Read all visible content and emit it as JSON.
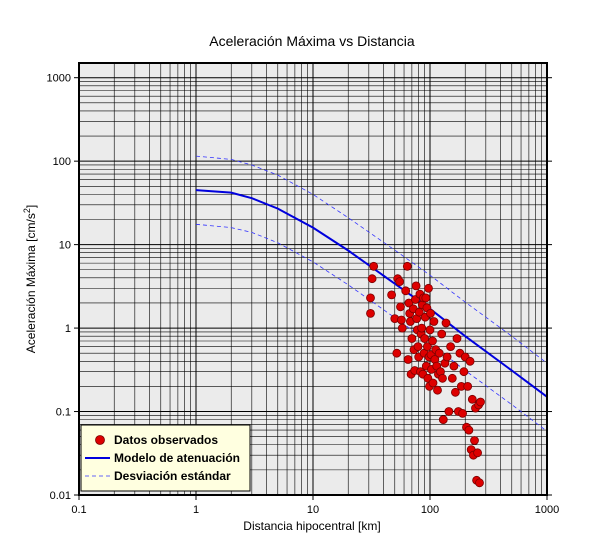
{
  "chart_data": {
    "type": "scatter",
    "title": "Aceleración Máxima vs Distancia",
    "xlabel": "Distancia hipocentral [km]",
    "ylabel_main": "Aceleración Máxima [cm/s",
    "ylabel_sup": "2",
    "ylabel_end": "]",
    "xscale": "log",
    "yscale": "log",
    "xlim": [
      0.1,
      1000
    ],
    "ylim": [
      0.01,
      1500
    ],
    "xticks": [
      {
        "value": 0.1,
        "label": "0.1"
      },
      {
        "value": 1,
        "label": "1"
      },
      {
        "value": 10,
        "label": "10"
      },
      {
        "value": 100,
        "label": "100"
      },
      {
        "value": 1000,
        "label": "1000"
      }
    ],
    "yticks": [
      {
        "value": 0.01,
        "label": "0.01"
      },
      {
        "value": 0.1,
        "label": "0.1"
      },
      {
        "value": 1,
        "label": "1"
      },
      {
        "value": 10,
        "label": "10"
      },
      {
        "value": 100,
        "label": "100"
      },
      {
        "value": 1000,
        "label": "1000"
      }
    ],
    "grid": true,
    "legend_position": "bottom-left",
    "colors": {
      "background": "#ebebeb",
      "grid": "#000000",
      "points": "#dd0000",
      "point_edge": "#7a0000",
      "model": "#0000dd",
      "stddev": "#3333ff",
      "legend_bg": "#ffffe0"
    },
    "series": [
      {
        "name": "Datos observados",
        "kind": "points",
        "points": [
          [
            33,
            5.5
          ],
          [
            32,
            3.9
          ],
          [
            31,
            2.3
          ],
          [
            31,
            1.5
          ],
          [
            47,
            2.5
          ],
          [
            50,
            1.3
          ],
          [
            52,
            0.5
          ],
          [
            53,
            3.9
          ],
          [
            55,
            3.6
          ],
          [
            56,
            1.8
          ],
          [
            57,
            1.25
          ],
          [
            58,
            1.0
          ],
          [
            62,
            2.8
          ],
          [
            64,
            5.5
          ],
          [
            65,
            0.42
          ],
          [
            66,
            2.0
          ],
          [
            67,
            1.5
          ],
          [
            68,
            1.2
          ],
          [
            69,
            0.28
          ],
          [
            70,
            0.75
          ],
          [
            72,
            1.7
          ],
          [
            73,
            0.55
          ],
          [
            74,
            0.31
          ],
          [
            75,
            2.2
          ],
          [
            76,
            3.2
          ],
          [
            77,
            1.3
          ],
          [
            78,
            0.95
          ],
          [
            79,
            0.6
          ],
          [
            80,
            0.45
          ],
          [
            81,
            1.55
          ],
          [
            82,
            2.55
          ],
          [
            83,
            0.3
          ],
          [
            84,
            0.85
          ],
          [
            85,
            1.0
          ],
          [
            86,
            1.9
          ],
          [
            87,
            0.28
          ],
          [
            88,
            2.3
          ],
          [
            89,
            0.5
          ],
          [
            90,
            0.75
          ],
          [
            91,
            1.35
          ],
          [
            92,
            2.3
          ],
          [
            93,
            0.35
          ],
          [
            94,
            1.75
          ],
          [
            95,
            0.6
          ],
          [
            96,
            0.25
          ],
          [
            97,
            3.0
          ],
          [
            98,
            0.45
          ],
          [
            99,
            0.2
          ],
          [
            100,
            0.95
          ],
          [
            101,
            1.5
          ],
          [
            102,
            0.48
          ],
          [
            103,
            0.32
          ],
          [
            105,
            0.7
          ],
          [
            106,
            0.22
          ],
          [
            108,
            1.2
          ],
          [
            110,
            0.42
          ],
          [
            112,
            0.55
          ],
          [
            114,
            0.35
          ],
          [
            116,
            0.18
          ],
          [
            118,
            0.28
          ],
          [
            120,
            0.5
          ],
          [
            123,
            0.3
          ],
          [
            126,
            0.85
          ],
          [
            128,
            0.25
          ],
          [
            130,
            0.08
          ],
          [
            134,
            0.38
          ],
          [
            137,
            1.15
          ],
          [
            140,
            0.45
          ],
          [
            145,
            0.1
          ],
          [
            150,
            0.6
          ],
          [
            155,
            0.25
          ],
          [
            160,
            0.35
          ],
          [
            165,
            0.17
          ],
          [
            170,
            0.75
          ],
          [
            175,
            0.1
          ],
          [
            180,
            0.5
          ],
          [
            185,
            0.2
          ],
          [
            190,
            0.095
          ],
          [
            195,
            0.3
          ],
          [
            200,
            0.45
          ],
          [
            205,
            0.065
          ],
          [
            210,
            0.2
          ],
          [
            215,
            0.06
          ],
          [
            220,
            0.4
          ],
          [
            225,
            0.035
          ],
          [
            230,
            0.14
          ],
          [
            235,
            0.03
          ],
          [
            240,
            0.045
          ],
          [
            245,
            0.11
          ],
          [
            250,
            0.015
          ],
          [
            255,
            0.032
          ],
          [
            260,
            0.12
          ],
          [
            265,
            0.014
          ],
          [
            270,
            0.13
          ]
        ]
      },
      {
        "name": "Modelo de atenuación",
        "kind": "line",
        "points": [
          [
            1,
            45
          ],
          [
            2,
            42
          ],
          [
            3,
            36
          ],
          [
            5,
            27
          ],
          [
            10,
            16
          ],
          [
            20,
            8.5
          ],
          [
            50,
            3.4
          ],
          [
            100,
            1.7
          ],
          [
            200,
            0.8
          ],
          [
            500,
            0.31
          ],
          [
            1000,
            0.15
          ]
        ]
      },
      {
        "name": "Desviación estándar",
        "kind": "dashed",
        "points": [
          [
            1,
            115
          ],
          [
            2,
            105
          ],
          [
            3,
            90
          ],
          [
            5,
            68
          ],
          [
            10,
            40
          ],
          [
            20,
            21
          ],
          [
            50,
            8.6
          ],
          [
            100,
            4.3
          ],
          [
            200,
            2.05
          ],
          [
            500,
            0.8
          ],
          [
            1000,
            0.38
          ]
        ]
      },
      {
        "name": "",
        "kind": "dashed",
        "points": [
          [
            1,
            17.5
          ],
          [
            2,
            16
          ],
          [
            3,
            14
          ],
          [
            5,
            10.5
          ],
          [
            10,
            6.2
          ],
          [
            20,
            3.3
          ],
          [
            50,
            1.33
          ],
          [
            100,
            0.66
          ],
          [
            200,
            0.31
          ],
          [
            500,
            0.121
          ],
          [
            1000,
            0.058
          ]
        ]
      }
    ]
  }
}
